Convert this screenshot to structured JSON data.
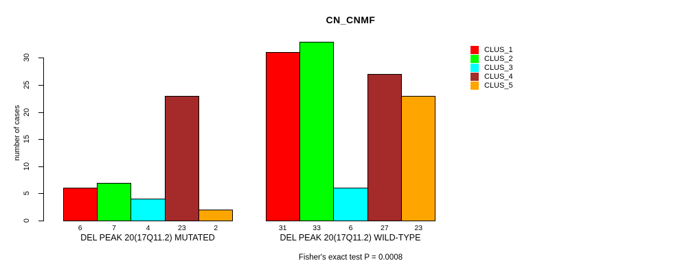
{
  "chart_data": {
    "type": "bar",
    "title": "CN_CNMF",
    "ylabel": "number of cases",
    "xlabel": "",
    "ylim": [
      0,
      33
    ],
    "yticks": [
      0,
      5,
      10,
      15,
      20,
      25,
      30
    ],
    "grid": false,
    "legend_position": "right",
    "bar_border_color": "#000000",
    "categories": [
      "DEL PEAK 20(17Q11.2) MUTATED",
      "DEL PEAK 20(17Q11.2) WILD-TYPE"
    ],
    "series": [
      {
        "name": "CLUS_1",
        "color": "#FF0000",
        "values": [
          6,
          31
        ]
      },
      {
        "name": "CLUS_2",
        "color": "#00FF00",
        "values": [
          7,
          33
        ]
      },
      {
        "name": "CLUS_3",
        "color": "#00FFFF",
        "values": [
          4,
          6
        ]
      },
      {
        "name": "CLUS_4",
        "color": "#A52A2A",
        "values": [
          23,
          27
        ]
      },
      {
        "name": "CLUS_5",
        "color": "#FFA500",
        "values": [
          2,
          23
        ]
      }
    ],
    "bar_value_labels": [
      [
        6,
        7,
        4,
        23,
        2
      ],
      [
        31,
        33,
        6,
        27,
        23
      ]
    ],
    "annotation": "Fisher's exact test P = 0.0008"
  }
}
